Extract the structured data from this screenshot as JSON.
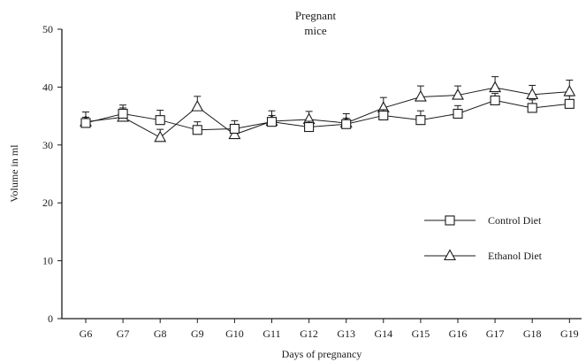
{
  "chart_data": {
    "type": "line",
    "title": "Pregnant\nmice",
    "xlabel": "Days of pregnancy",
    "ylabel": "Volume in ml",
    "ylim": [
      0,
      50
    ],
    "yticks": [
      0,
      10,
      20,
      30,
      40,
      50
    ],
    "grid": false,
    "legend_position": "right",
    "categories": [
      "G6",
      "G7",
      "G8",
      "G9",
      "G10",
      "G11",
      "G12",
      "G13",
      "G14",
      "G15",
      "G16",
      "G17",
      "G18",
      "G19"
    ],
    "series": [
      {
        "name": "Control Diet",
        "marker": "square",
        "values": [
          33.8,
          35.4,
          34.3,
          32.6,
          32.8,
          34.0,
          33.1,
          33.6,
          35.1,
          34.3,
          35.4,
          37.7,
          36.4,
          37.1
        ],
        "errors": [
          1.0,
          1.0,
          1.7,
          1.4,
          1.4,
          1.1,
          1.0,
          1.0,
          1.0,
          1.6,
          1.4,
          1.2,
          1.4,
          1.4
        ]
      },
      {
        "name": "Ethanol Diet",
        "marker": "triangle",
        "values": [
          34.0,
          34.8,
          31.3,
          36.6,
          31.8,
          34.1,
          34.4,
          33.8,
          36.4,
          38.3,
          38.6,
          39.9,
          38.7,
          39.2
        ],
        "errors": [
          1.7,
          2.1,
          1.4,
          1.8,
          1.6,
          1.8,
          1.4,
          1.6,
          1.8,
          1.9,
          1.6,
          1.9,
          1.6,
          2.0
        ]
      }
    ]
  }
}
